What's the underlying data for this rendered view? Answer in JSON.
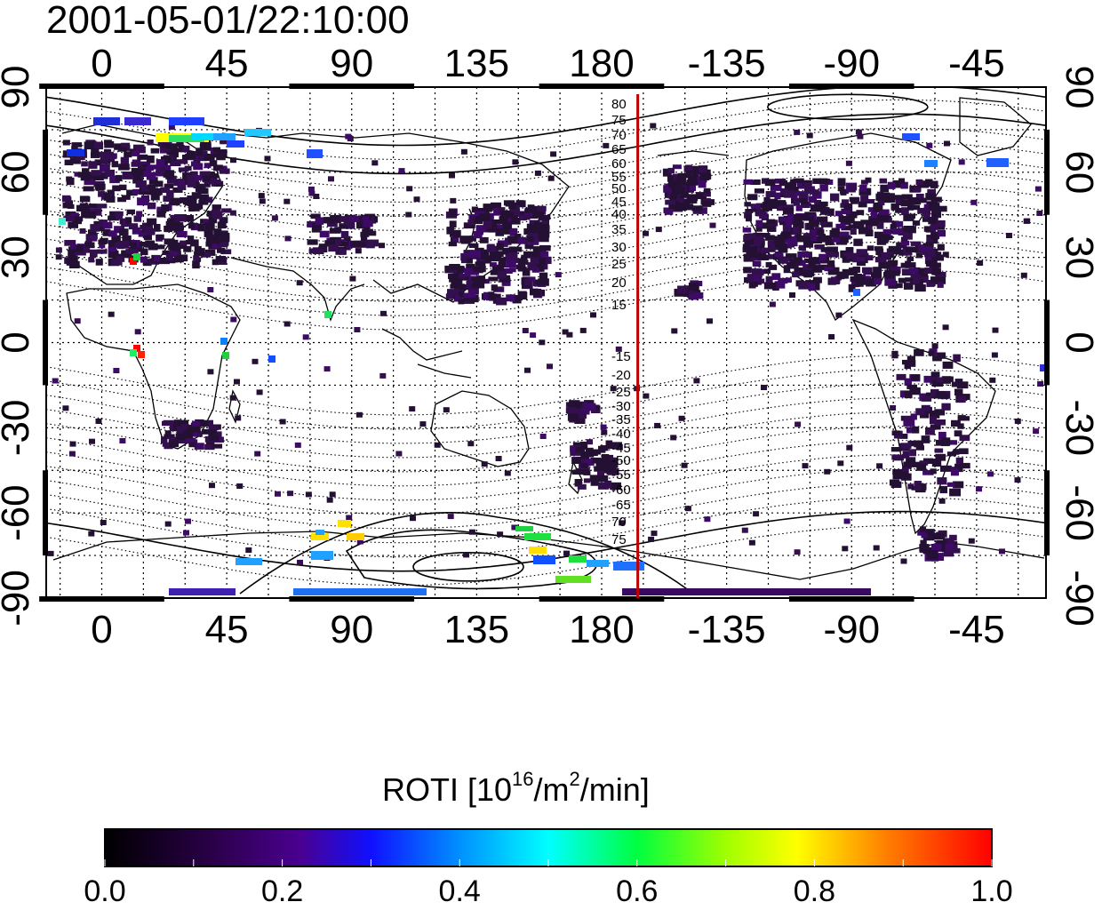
{
  "title": "2001-05-01/22:10:00",
  "map": {
    "top_lon_labels": [
      "0",
      "45",
      "90",
      "135",
      "180",
      "-135",
      "-90",
      "-45"
    ],
    "bottom_lon_labels": [
      "0",
      "45",
      "90",
      "135",
      "180",
      "-135",
      "-90",
      "-45"
    ],
    "left_lat_labels": [
      "90",
      "60",
      "30",
      "0",
      "-30",
      "-60",
      "-90"
    ],
    "right_lat_labels": [
      "90",
      "60",
      "30",
      "0",
      "-30",
      "-60",
      "-90"
    ],
    "lon_ticks": [
      0,
      45,
      90,
      135,
      180,
      225,
      270,
      315
    ],
    "lat_ticks": [
      90,
      60,
      30,
      0,
      -30,
      -60,
      -90
    ],
    "contour_labels_north": [
      "80",
      "75",
      "70",
      "65",
      "60",
      "55",
      "50",
      "45",
      "40",
      "35",
      "30",
      "25",
      "20",
      "15"
    ],
    "contour_labels_south": [
      "-15",
      "-20",
      "-25",
      "-30",
      "-35",
      "-40",
      "-45",
      "-50",
      "-55",
      "-60",
      "-65",
      "70",
      "75"
    ],
    "terminator_line_lon": -167,
    "terminator_color": "#c00000"
  },
  "colorbar": {
    "title_main": "ROTI  [10",
    "title_sup1": "16",
    "title_mid": "/m",
    "title_sup2": "2",
    "title_end": "/min]",
    "labels": [
      "0.0",
      "0.2",
      "0.4",
      "0.6",
      "0.8",
      "1.0"
    ],
    "min": 0.0,
    "max": 1.0,
    "colormap_stops": [
      "#000000",
      "#3a0060",
      "#5a00a0",
      "#0000ff",
      "#00a0ff",
      "#00ffff",
      "#00ff60",
      "#60ff00",
      "#ffff00",
      "#ff8000",
      "#ff0000"
    ]
  },
  "colors": {
    "low_roti": "#2a0a3a",
    "medium_low": "#4b0080",
    "blue": "#0030ff",
    "cyan": "#00e0ff",
    "green": "#20e040",
    "yellow": "#ffe000",
    "red": "#ff0000"
  }
}
